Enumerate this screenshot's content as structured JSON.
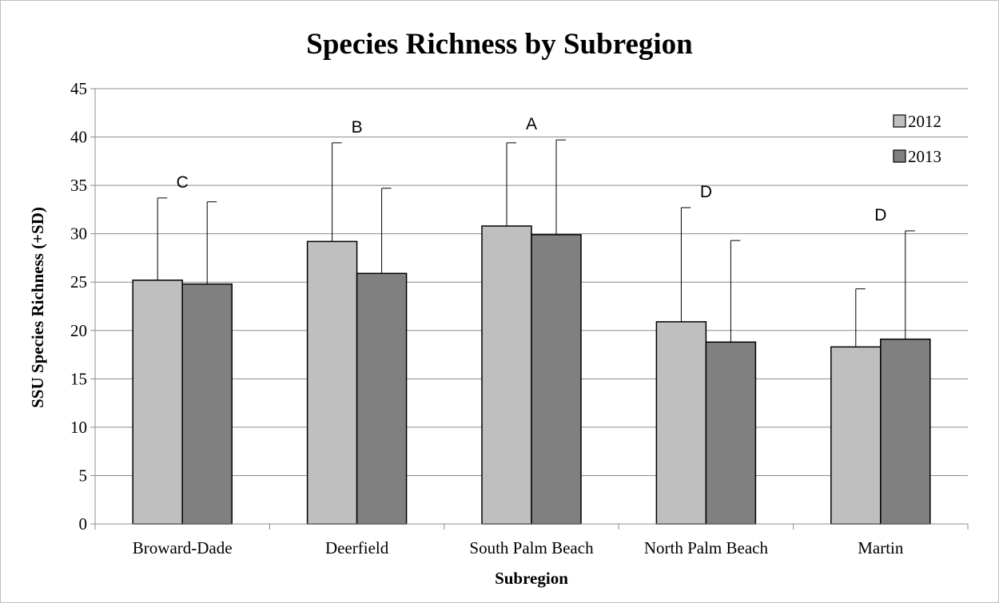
{
  "chart_data": {
    "type": "bar",
    "title": "Species Richness by Subregion",
    "xlabel": "Subregion",
    "ylabel": "SSU Species Richness (+SD)",
    "ylim": [
      0,
      45
    ],
    "yticks": [
      "0",
      "5",
      "10",
      "15",
      "20",
      "25",
      "30",
      "35",
      "40",
      "45"
    ],
    "grid": true,
    "legend_position": "top-right",
    "categories": [
      "Broward-Dade",
      "Deerfield",
      "South Palm Beach",
      "North Palm Beach",
      "Martin"
    ],
    "series": [
      {
        "name": "2012",
        "color": "#bfbfbf",
        "values": [
          25.2,
          29.2,
          30.8,
          20.9,
          18.3
        ],
        "error_upper": [
          33.7,
          39.4,
          39.4,
          32.7,
          24.3
        ]
      },
      {
        "name": "2013",
        "color": "#808080",
        "values": [
          24.8,
          25.9,
          29.9,
          18.8,
          19.1
        ],
        "error_upper": [
          33.3,
          34.7,
          39.7,
          29.3,
          30.3
        ]
      }
    ],
    "annotations": [
      "C",
      "B",
      "A",
      "D",
      "D"
    ]
  }
}
